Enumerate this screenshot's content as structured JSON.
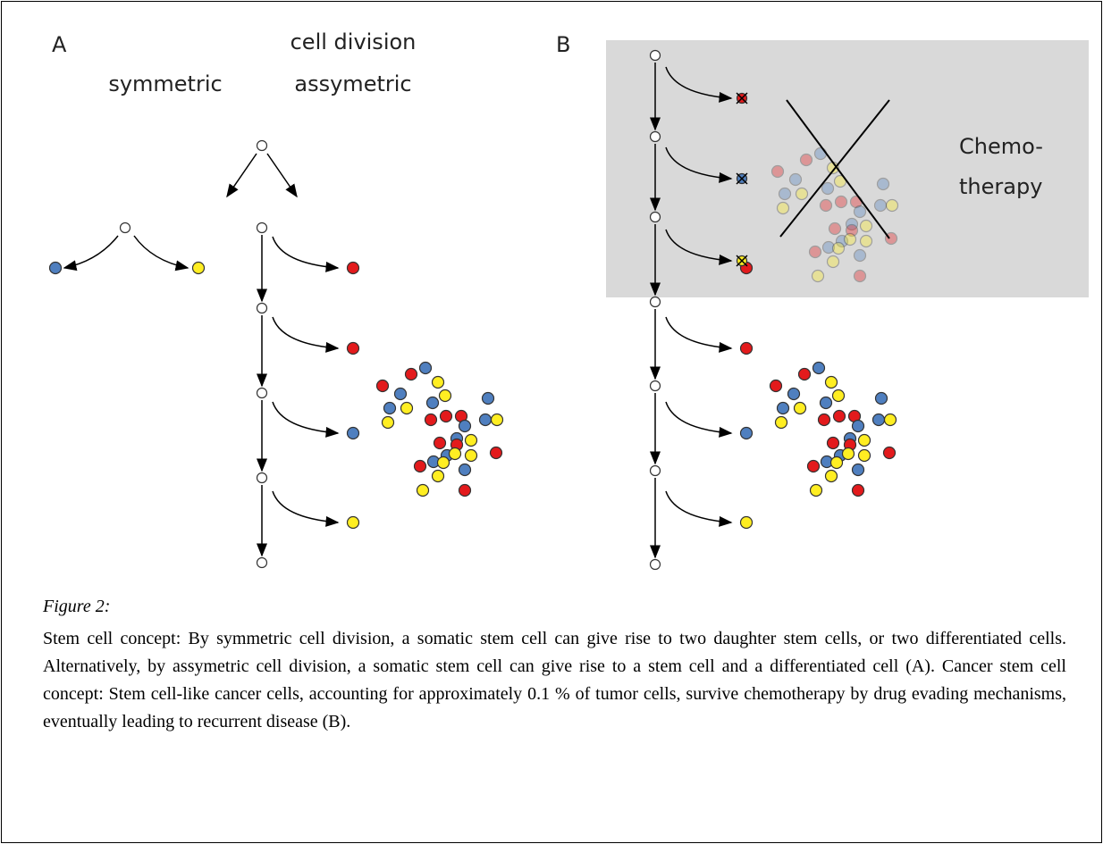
{
  "panel_a": {
    "label": "A",
    "title": "cell division",
    "left_label": "symmetric",
    "right_label": "assymetric"
  },
  "panel_b": {
    "label": "B",
    "chemo_line1": "Chemo-",
    "chemo_line2": "therapy"
  },
  "caption": {
    "label": "Figure 2:",
    "text": "Stem cell concept: By symmetric cell division, a somatic stem cell can give rise to two daughter stem cells, or two differentiated cells. Alternatively, by assymetric cell division, a somatic stem cell can give rise to a stem cell and a differentiated cell (A). Cancer stem cell concept: Stem cell-like cancer cells, accounting for approximately 0.1 % of tumor cells, survive chemotherapy by drug evading mechanisms, eventually leading to recurrent disease (B)."
  }
}
